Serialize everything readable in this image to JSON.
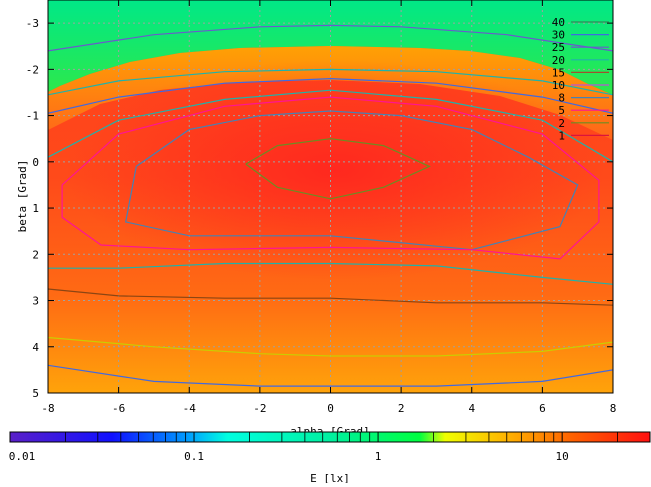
{
  "chart_data": {
    "type": "heatmap",
    "xlabel": "alpha [Grad]",
    "ylabel": "beta [Grad]",
    "xlim": [
      -8,
      8
    ],
    "ylim": [
      -3.5,
      5
    ],
    "y_inverted": true,
    "x_ticks": [
      -8,
      -6,
      -4,
      -2,
      0,
      2,
      4,
      6,
      8
    ],
    "y_ticks": [
      -3,
      -2,
      -1,
      0,
      1,
      2,
      3,
      4,
      5
    ],
    "grid": true,
    "colorbar": {
      "label": "E [lx]",
      "scale": "log",
      "range": [
        0.01,
        30
      ],
      "tick_values": [
        0.01,
        0.1,
        1,
        10
      ],
      "tick_labels": [
        "0.01",
        "0.1",
        "1",
        "10"
      ]
    },
    "legend": {
      "placement": "top-right",
      "levels": [
        "40",
        "30",
        "25",
        "20",
        "15",
        "10",
        "8",
        "5",
        "2",
        "1"
      ],
      "colors": [
        "#2e8b57",
        "#4169e1",
        "#6a5acd",
        "#20b2aa",
        "#a0522d",
        "#ba55d3",
        "#4682b4",
        "#ff1493",
        "#6b8e23",
        "#dc143c"
      ]
    },
    "contours": [
      {
        "level": "20",
        "color": "#6b8e23",
        "points": [
          [
            -2.4,
            0.05
          ],
          [
            -1.5,
            -0.35
          ],
          [
            0,
            -0.5
          ],
          [
            1.5,
            -0.35
          ],
          [
            2.8,
            0.1
          ],
          [
            1.5,
            0.55
          ],
          [
            0,
            0.8
          ],
          [
            -1.5,
            0.55
          ],
          [
            -2.4,
            0.05
          ]
        ]
      },
      {
        "level": "15",
        "color": "#4682b4",
        "points": [
          [
            -5.5,
            0.1
          ],
          [
            -4,
            -0.7
          ],
          [
            -2,
            -1.0
          ],
          [
            0,
            -1.1
          ],
          [
            2,
            -1.0
          ],
          [
            4,
            -0.7
          ],
          [
            5.6,
            -0.1
          ],
          [
            7.0,
            0.5
          ],
          [
            6.5,
            1.4
          ],
          [
            4,
            1.9
          ],
          [
            0,
            1.6
          ],
          [
            -4,
            1.6
          ],
          [
            -5.8,
            1.3
          ],
          [
            -5.5,
            0.1
          ]
        ]
      },
      {
        "level": "10",
        "color": "#ff1493",
        "points": [
          [
            -7.6,
            0.5
          ],
          [
            -6,
            -0.6
          ],
          [
            -3,
            -1.2
          ],
          [
            0,
            -1.4
          ],
          [
            3,
            -1.2
          ],
          [
            6,
            -0.6
          ],
          [
            7.6,
            0.4
          ],
          [
            7.6,
            1.3
          ],
          [
            6.5,
            2.1
          ],
          [
            4,
            1.9
          ],
          [
            0,
            1.85
          ],
          [
            -4,
            1.9
          ],
          [
            -6.5,
            1.8
          ],
          [
            -7.6,
            1.2
          ],
          [
            -7.6,
            0.5
          ]
        ]
      },
      {
        "level": "8",
        "color": "#20b2aa",
        "points": [
          [
            -8,
            -0.1
          ],
          [
            -6,
            -0.9
          ],
          [
            -3,
            -1.35
          ],
          [
            0,
            -1.55
          ],
          [
            3,
            -1.35
          ],
          [
            6,
            -0.9
          ],
          [
            8,
            0
          ]
        ]
      },
      {
        "level": "5",
        "color": "#4169e1",
        "points": [
          [
            -8,
            -1.05
          ],
          [
            -6,
            -1.4
          ],
          [
            -3,
            -1.7
          ],
          [
            0,
            -1.8
          ],
          [
            3,
            -1.7
          ],
          [
            6,
            -1.4
          ],
          [
            8,
            -1.05
          ]
        ]
      },
      {
        "level": "2",
        "color": "#20b2aa",
        "points": [
          [
            -8,
            -1.45
          ],
          [
            -6,
            -1.75
          ],
          [
            -3,
            -1.95
          ],
          [
            0,
            -2.0
          ],
          [
            3,
            -1.95
          ],
          [
            6,
            -1.75
          ],
          [
            8,
            -1.45
          ]
        ]
      },
      {
        "level": "1",
        "color": "#6a5acd",
        "points": [
          [
            -8,
            -2.4
          ],
          [
            -5,
            -2.75
          ],
          [
            -2,
            -2.92
          ],
          [
            0,
            -2.95
          ],
          [
            2,
            -2.92
          ],
          [
            5,
            -2.75
          ],
          [
            8,
            -2.4
          ]
        ]
      },
      {
        "level": "25",
        "color": "#20b2aa",
        "points": [
          [
            -8,
            2.3
          ],
          [
            -6,
            2.3
          ],
          [
            -3,
            2.2
          ],
          [
            0,
            2.2
          ],
          [
            3,
            2.25
          ],
          [
            6,
            2.5
          ],
          [
            8,
            2.65
          ]
        ]
      },
      {
        "level": "30",
        "color": "#8b4513",
        "points": [
          [
            -8,
            2.75
          ],
          [
            -6,
            2.9
          ],
          [
            -3,
            2.95
          ],
          [
            0,
            2.95
          ],
          [
            3,
            3.05
          ],
          [
            6,
            3.05
          ],
          [
            8,
            3.1
          ]
        ]
      },
      {
        "level": "40",
        "color": "#cccc00",
        "points": [
          [
            -8,
            3.8
          ],
          [
            -5,
            4.0
          ],
          [
            -2,
            4.15
          ],
          [
            0,
            4.2
          ],
          [
            3,
            4.2
          ],
          [
            6,
            4.1
          ],
          [
            8,
            3.9
          ]
        ]
      },
      {
        "level": "5",
        "color": "#4169e1",
        "points": [
          [
            -8,
            4.4
          ],
          [
            -5,
            4.75
          ],
          [
            -2,
            4.85
          ],
          [
            0,
            4.85
          ],
          [
            3,
            4.85
          ],
          [
            6,
            4.75
          ],
          [
            8,
            4.5
          ]
        ]
      }
    ]
  }
}
